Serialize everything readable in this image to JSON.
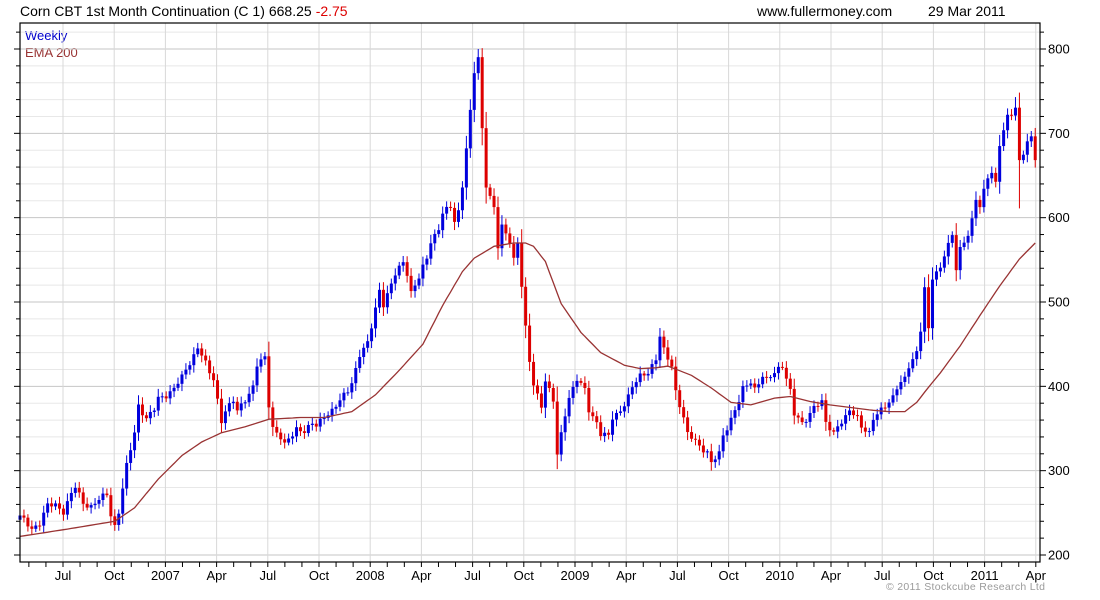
{
  "header": {
    "title": "Corn CBT 1st Month Continuation (C 1)",
    "last_price": "668.25",
    "change": "-2.75",
    "site": "www.fullermoney.com",
    "date": "29 Mar 2011"
  },
  "legend": {
    "series": "Weekly",
    "overlay": "EMA 200"
  },
  "footer": {
    "copyright": "© 2011 Stockcube Research Ltd"
  },
  "colors": {
    "up": "#0000dd",
    "down": "#dd0000",
    "ema": "#993333",
    "grid_minor": "#e8e8e8",
    "grid_major": "#c6c6c6",
    "grid_vertical": "#d8d8d8",
    "axis": "#000000",
    "label": "#000000",
    "copyright": "#9b9b9b"
  },
  "chart_data": {
    "type": "candlestick",
    "instrument": "Corn CBT 1st Month Continuation (C 1)",
    "interval": "Weekly",
    "overlay": "EMA 200",
    "last_close": 668.25,
    "change": -2.75,
    "as_of": "29 Mar 2011",
    "y_axis": {
      "min": 200,
      "max": 800,
      "tick_major": 100,
      "tick_minor": 20,
      "side": "right",
      "labels": [
        "800",
        "700",
        "600",
        "500",
        "400",
        "300",
        "200"
      ]
    },
    "x_axis": {
      "labels": [
        "Jul",
        "Oct",
        "2007",
        "Apr",
        "Jul",
        "Oct",
        "2008",
        "Apr",
        "Jul",
        "Oct",
        "2009",
        "Apr",
        "Jul",
        "Oct",
        "2010",
        "Apr",
        "Jul",
        "Oct",
        "2011",
        "Apr"
      ],
      "start": "Apr 2006",
      "end": "Apr 2011",
      "weeks": 258,
      "weeks_per_label": 13,
      "minor_tick": "monthly",
      "grid": "quarterly"
    },
    "price_anchors": [
      [
        0,
        245
      ],
      [
        3,
        232
      ],
      [
        5,
        238
      ],
      [
        7,
        258
      ],
      [
        9,
        260
      ],
      [
        11,
        252
      ],
      [
        13,
        272
      ],
      [
        14,
        280
      ],
      [
        16,
        262
      ],
      [
        18,
        258
      ],
      [
        20,
        265
      ],
      [
        22,
        272
      ],
      [
        23,
        248
      ],
      [
        24,
        235
      ],
      [
        25,
        252
      ],
      [
        27,
        305
      ],
      [
        29,
        345
      ],
      [
        30,
        378
      ],
      [
        32,
        362
      ],
      [
        34,
        372
      ],
      [
        35,
        385
      ],
      [
        37,
        390
      ],
      [
        39,
        398
      ],
      [
        41,
        410
      ],
      [
        43,
        428
      ],
      [
        45,
        447
      ],
      [
        46,
        438
      ],
      [
        48,
        415
      ],
      [
        49,
        408
      ],
      [
        51,
        360
      ],
      [
        52,
        372
      ],
      [
        54,
        382
      ],
      [
        55,
        370
      ],
      [
        57,
        385
      ],
      [
        59,
        400
      ],
      [
        60,
        425
      ],
      [
        62,
        433
      ],
      [
        63,
        378
      ],
      [
        64,
        352
      ],
      [
        66,
        340
      ],
      [
        67,
        330
      ],
      [
        69,
        342
      ],
      [
        70,
        350
      ],
      [
        72,
        348
      ],
      [
        74,
        355
      ],
      [
        75,
        352
      ],
      [
        77,
        365
      ],
      [
        79,
        372
      ],
      [
        81,
        382
      ],
      [
        83,
        395
      ],
      [
        84,
        405
      ],
      [
        86,
        438
      ],
      [
        88,
        450
      ],
      [
        89,
        470
      ],
      [
        91,
        515
      ],
      [
        92,
        498
      ],
      [
        94,
        520
      ],
      [
        95,
        532
      ],
      [
        97,
        548
      ],
      [
        98,
        535
      ],
      [
        99,
        512
      ],
      [
        101,
        528
      ],
      [
        103,
        552
      ],
      [
        104,
        572
      ],
      [
        106,
        588
      ],
      [
        107,
        605
      ],
      [
        109,
        612
      ],
      [
        110,
        595
      ],
      [
        111,
        608
      ],
      [
        112,
        640
      ],
      [
        114,
        725
      ],
      [
        115,
        772
      ],
      [
        116,
        788
      ],
      [
        117,
        705
      ],
      [
        118,
        640
      ],
      [
        120,
        612
      ],
      [
        121,
        565
      ],
      [
        122,
        588
      ],
      [
        124,
        572
      ],
      [
        125,
        552
      ],
      [
        126,
        572
      ],
      [
        128,
        468
      ],
      [
        129,
        428
      ],
      [
        130,
        402
      ],
      [
        132,
        378
      ],
      [
        133,
        408
      ],
      [
        135,
        382
      ],
      [
        136,
        318
      ],
      [
        138,
        368
      ],
      [
        139,
        388
      ],
      [
        141,
        408
      ],
      [
        143,
        395
      ],
      [
        144,
        372
      ],
      [
        146,
        358
      ],
      [
        147,
        344
      ],
      [
        149,
        340
      ],
      [
        150,
        362
      ],
      [
        152,
        372
      ],
      [
        154,
        388
      ],
      [
        155,
        398
      ],
      [
        157,
        412
      ],
      [
        159,
        418
      ],
      [
        161,
        432
      ],
      [
        162,
        458
      ],
      [
        163,
        442
      ],
      [
        165,
        425
      ],
      [
        166,
        395
      ],
      [
        168,
        362
      ],
      [
        169,
        342
      ],
      [
        171,
        336
      ],
      [
        172,
        330
      ],
      [
        174,
        322
      ],
      [
        175,
        308
      ],
      [
        177,
        320
      ],
      [
        178,
        342
      ],
      [
        180,
        362
      ],
      [
        182,
        382
      ],
      [
        183,
        396
      ],
      [
        185,
        406
      ],
      [
        186,
        398
      ],
      [
        188,
        412
      ],
      [
        189,
        406
      ],
      [
        191,
        416
      ],
      [
        192,
        422
      ],
      [
        193,
        426
      ],
      [
        195,
        394
      ],
      [
        196,
        366
      ],
      [
        198,
        356
      ],
      [
        199,
        362
      ],
      [
        201,
        376
      ],
      [
        203,
        380
      ],
      [
        204,
        356
      ],
      [
        206,
        346
      ],
      [
        207,
        354
      ],
      [
        209,
        362
      ],
      [
        210,
        370
      ],
      [
        212,
        364
      ],
      [
        213,
        354
      ],
      [
        215,
        344
      ],
      [
        216,
        360
      ],
      [
        218,
        372
      ],
      [
        219,
        378
      ],
      [
        221,
        388
      ],
      [
        222,
        398
      ],
      [
        224,
        408
      ],
      [
        225,
        424
      ],
      [
        227,
        442
      ],
      [
        228,
        468
      ],
      [
        229,
        515
      ],
      [
        230,
        466
      ],
      [
        231,
        528
      ],
      [
        233,
        542
      ],
      [
        234,
        558
      ],
      [
        236,
        578
      ],
      [
        237,
        538
      ],
      [
        238,
        562
      ],
      [
        240,
        582
      ],
      [
        241,
        598
      ],
      [
        242,
        622
      ],
      [
        243,
        612
      ],
      [
        245,
        648
      ],
      [
        246,
        655
      ],
      [
        247,
        642
      ],
      [
        248,
        688
      ],
      [
        250,
        718
      ],
      [
        251,
        722
      ],
      [
        252,
        730
      ],
      [
        253,
        668
      ],
      [
        255,
        690
      ],
      [
        256,
        694
      ],
      [
        257,
        668.25
      ]
    ],
    "ema_anchors": [
      [
        0,
        222
      ],
      [
        11,
        230
      ],
      [
        24,
        240
      ],
      [
        29,
        256
      ],
      [
        35,
        290
      ],
      [
        41,
        318
      ],
      [
        46,
        334
      ],
      [
        51,
        345
      ],
      [
        57,
        352
      ],
      [
        63,
        361
      ],
      [
        71,
        363
      ],
      [
        77,
        363
      ],
      [
        84,
        370
      ],
      [
        90,
        390
      ],
      [
        96,
        419
      ],
      [
        102,
        450
      ],
      [
        107,
        496
      ],
      [
        112,
        536
      ],
      [
        115,
        552
      ],
      [
        120,
        566
      ],
      [
        125,
        570
      ],
      [
        128,
        570
      ],
      [
        130,
        566
      ],
      [
        133,
        548
      ],
      [
        137,
        498
      ],
      [
        142,
        464
      ],
      [
        147,
        440
      ],
      [
        153,
        425
      ],
      [
        157,
        421
      ],
      [
        161,
        422
      ],
      [
        164,
        424
      ],
      [
        170,
        413
      ],
      [
        175,
        398
      ],
      [
        180,
        381
      ],
      [
        185,
        378
      ],
      [
        191,
        386
      ],
      [
        195,
        388
      ],
      [
        200,
        382
      ],
      [
        205,
        378
      ],
      [
        210,
        375
      ],
      [
        215,
        372
      ],
      [
        220,
        370
      ],
      [
        224,
        370
      ],
      [
        227,
        381
      ],
      [
        230,
        399
      ],
      [
        233,
        416
      ],
      [
        238,
        448
      ],
      [
        243,
        484
      ],
      [
        248,
        519
      ],
      [
        253,
        551
      ],
      [
        257,
        570
      ]
    ],
    "extremes": [
      {
        "t": 116,
        "high": 800
      },
      {
        "t": 136,
        "low": 302
      },
      {
        "t": 175,
        "low": 300
      },
      {
        "t": 252,
        "high": 743
      },
      {
        "t": 253,
        "low": 611
      }
    ]
  }
}
